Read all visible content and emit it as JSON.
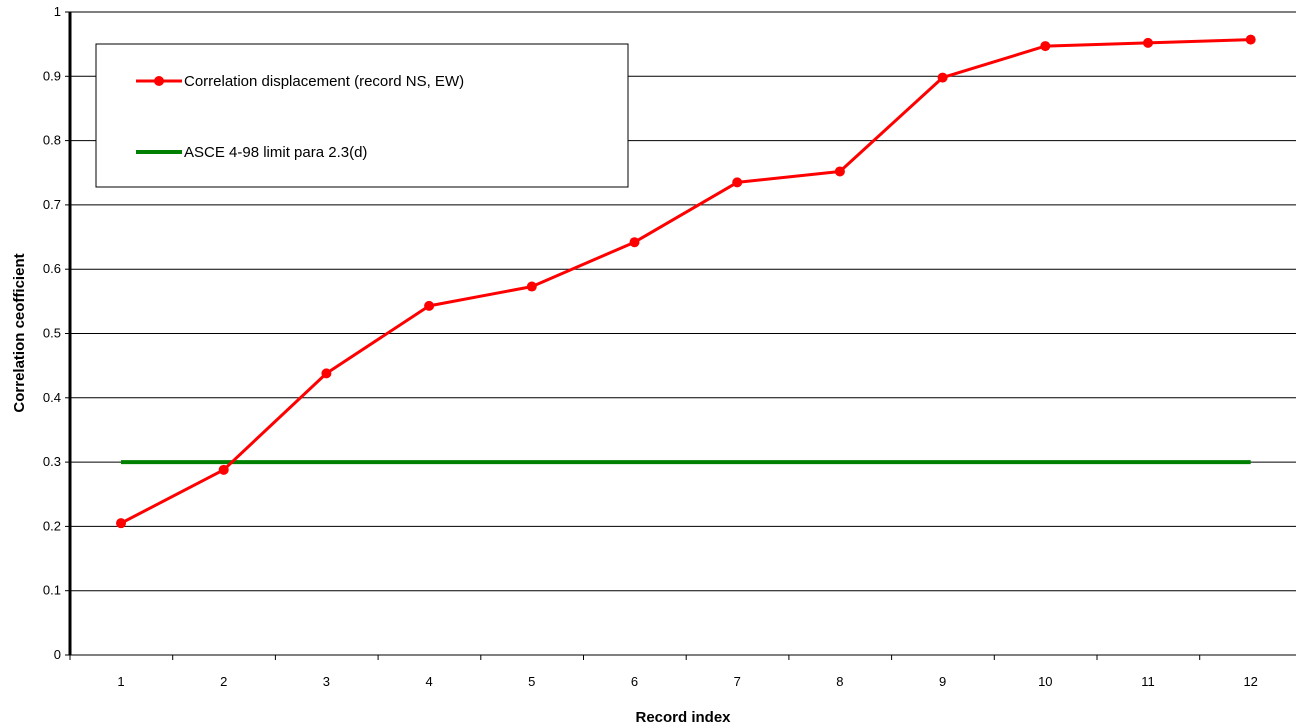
{
  "chart_data": {
    "type": "line",
    "title": "",
    "xlabel": "Record index",
    "ylabel": "Correlation ceofficient",
    "categories": [
      "1",
      "2",
      "3",
      "4",
      "5",
      "6",
      "7",
      "8",
      "9",
      "10",
      "11",
      "12"
    ],
    "x": [
      1,
      2,
      3,
      4,
      5,
      6,
      7,
      8,
      9,
      10,
      11,
      12
    ],
    "ylim": [
      0,
      1
    ],
    "yticks": [
      "0",
      "0.1",
      "0.2",
      "0.3",
      "0.4",
      "0.5",
      "0.6",
      "0.7",
      "0.8",
      "0.9",
      "1"
    ],
    "grid": "horizontal",
    "legend_position": "top-left",
    "series": [
      {
        "name": "Correlation displacement (record NS, EW)",
        "color": "#ff0000",
        "marker": "circle",
        "values": [
          0.205,
          0.288,
          0.438,
          0.543,
          0.573,
          0.642,
          0.735,
          0.752,
          0.898,
          0.947,
          0.952,
          0.957
        ]
      },
      {
        "name": "ASCE 4-98 limit para 2.3(d)",
        "color": "#008000",
        "marker": "none",
        "values": [
          0.3,
          0.3,
          0.3,
          0.3,
          0.3,
          0.3,
          0.3,
          0.3,
          0.3,
          0.3,
          0.3,
          0.3
        ]
      }
    ]
  }
}
